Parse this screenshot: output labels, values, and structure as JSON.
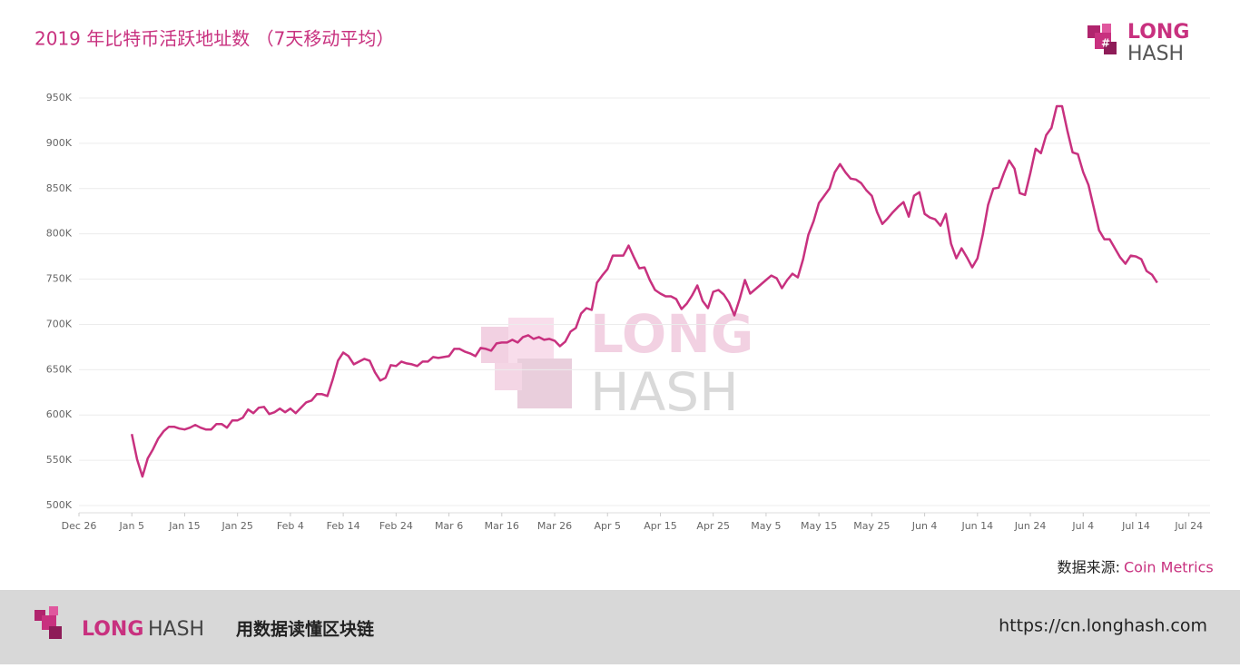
{
  "header": {
    "title": "2019 年比特币活跃地址数 （7天移动平均）",
    "logo": [
      "LONG",
      "HASH"
    ]
  },
  "chart_data": {
    "type": "line",
    "x": [
      "Jan 5",
      "Jan 6",
      "Jan 7",
      "Jan 8",
      "Jan 9",
      "Jan 10",
      "Jan 11",
      "Jan 12",
      "Jan 13",
      "Jan 14",
      "Jan 15",
      "Jan 16",
      "Jan 17",
      "Jan 18",
      "Jan 19",
      "Jan 20",
      "Jan 21",
      "Jan 22",
      "Jan 23",
      "Jan 24",
      "Jan 25",
      "Jan 26",
      "Jan 27",
      "Jan 28",
      "Jan 29",
      "Jan 30",
      "Jan 31",
      "Feb 1",
      "Feb 2",
      "Feb 3",
      "Feb 4",
      "Feb 5",
      "Feb 6",
      "Feb 7",
      "Feb 8",
      "Feb 9",
      "Feb 10",
      "Feb 11",
      "Feb 12",
      "Feb 13",
      "Feb 14",
      "Feb 15",
      "Feb 16",
      "Feb 17",
      "Feb 18",
      "Feb 19",
      "Feb 20",
      "Feb 21",
      "Feb 22",
      "Feb 23",
      "Feb 24",
      "Feb 25",
      "Feb 26",
      "Feb 27",
      "Feb 28",
      "Mar 1",
      "Mar 2",
      "Mar 3",
      "Mar 4",
      "Mar 5",
      "Mar 6",
      "Mar 7",
      "Mar 8",
      "Mar 9",
      "Mar 10",
      "Mar 11",
      "Mar 12",
      "Mar 13",
      "Mar 14",
      "Mar 15",
      "Mar 16",
      "Mar 17",
      "Mar 18",
      "Mar 19",
      "Mar 20",
      "Mar 21",
      "Mar 22",
      "Mar 23",
      "Mar 24",
      "Mar 25",
      "Mar 26",
      "Mar 27",
      "Mar 28",
      "Mar 29",
      "Mar 30",
      "Mar 31",
      "Apr 1",
      "Apr 2",
      "Apr 3",
      "Apr 4",
      "Apr 5",
      "Apr 6",
      "Apr 7",
      "Apr 8",
      "Apr 9",
      "Apr 10",
      "Apr 11",
      "Apr 12",
      "Apr 13",
      "Apr 14",
      "Apr 15",
      "Apr 16",
      "Apr 17",
      "Apr 18",
      "Apr 19",
      "Apr 20",
      "Apr 21",
      "Apr 22",
      "Apr 23",
      "Apr 24",
      "Apr 25",
      "Apr 26",
      "Apr 27",
      "Apr 28",
      "Apr 29",
      "Apr 30",
      "May 1",
      "May 2",
      "May 3",
      "May 4",
      "May 5",
      "May 6",
      "May 7",
      "May 8",
      "May 9",
      "May 10",
      "May 11",
      "May 12",
      "May 13",
      "May 14",
      "May 15",
      "May 16",
      "May 17",
      "May 18",
      "May 19",
      "May 20",
      "May 21",
      "May 22",
      "May 23",
      "May 24",
      "May 25",
      "May 26",
      "May 27",
      "May 28",
      "May 29",
      "May 30",
      "May 31",
      "Jun 1",
      "Jun 2",
      "Jun 3",
      "Jun 4",
      "Jun 5",
      "Jun 6",
      "Jun 7",
      "Jun 8",
      "Jun 9",
      "Jun 10",
      "Jun 11",
      "Jun 12",
      "Jun 13",
      "Jun 14",
      "Jun 15",
      "Jun 16",
      "Jun 17",
      "Jun 18",
      "Jun 19",
      "Jun 20",
      "Jun 21",
      "Jun 22",
      "Jun 23",
      "Jun 24",
      "Jun 25",
      "Jun 26",
      "Jun 27",
      "Jun 28",
      "Jun 29",
      "Jun 30",
      "Jul 1",
      "Jul 2",
      "Jul 3",
      "Jul 4",
      "Jul 5",
      "Jul 6",
      "Jul 7",
      "Jul 8",
      "Jul 9",
      "Jul 10",
      "Jul 11",
      "Jul 12",
      "Jul 13",
      "Jul 14",
      "Jul 15",
      "Jul 16",
      "Jul 17",
      "Jul 18"
    ],
    "series": [
      {
        "color": "#c8317f",
        "values": [
          579,
          551,
          532,
          552,
          562,
          574,
          582,
          587,
          587,
          585,
          584,
          586,
          589,
          586,
          584,
          584,
          590,
          590,
          586,
          594,
          594,
          597,
          606,
          602,
          608,
          609,
          601,
          603,
          607,
          603,
          607,
          602,
          608,
          614,
          616,
          623,
          623,
          621,
          639,
          660,
          669,
          665,
          656,
          659,
          662,
          660,
          647,
          638,
          641,
          655,
          654,
          659,
          657,
          656,
          654,
          659,
          659,
          664,
          663,
          664,
          665,
          673,
          673,
          670,
          668,
          665,
          674,
          673,
          671,
          679,
          680,
          680,
          683,
          680,
          686,
          688,
          684,
          686,
          683,
          684,
          682,
          676,
          681,
          692,
          696,
          712,
          718,
          716,
          746,
          754,
          761,
          776,
          776,
          776,
          787,
          774,
          762,
          763,
          749,
          738,
          734,
          731,
          731,
          728,
          717,
          723,
          732,
          743,
          726,
          718,
          736,
          738,
          733,
          724,
          710,
          728,
          749,
          734,
          739,
          744,
          749,
          754,
          751,
          740,
          749,
          756,
          752,
          772,
          799,
          814,
          834,
          842,
          850,
          868,
          877,
          868,
          861,
          860,
          856,
          848,
          842,
          824,
          811,
          817,
          824,
          830,
          835,
          819,
          842,
          846,
          822,
          818,
          816,
          809,
          822,
          789,
          773,
          784,
          774,
          763,
          773,
          799,
          832,
          850,
          851,
          867,
          881,
          872,
          845,
          843,
          867,
          894,
          889,
          909,
          917,
          941,
          941,
          914,
          890,
          888,
          868,
          854,
          829,
          804,
          794,
          794,
          784,
          774,
          767,
          776,
          775,
          772,
          759,
          755,
          746
        ]
      }
    ],
    "xlim": [
      "Dec 26",
      "Jul 28"
    ],
    "xticks": [
      "Dec 26",
      "Jan 5",
      "Jan 15",
      "Jan 25",
      "Feb 4",
      "Feb 14",
      "Feb 24",
      "Mar 6",
      "Mar 16",
      "Mar 26",
      "Apr 5",
      "Apr 15",
      "Apr 25",
      "May 5",
      "May 15",
      "May 25",
      "Jun 4",
      "Jun 14",
      "Jun 24",
      "Jul 4",
      "Jul 14",
      "Jul 24"
    ],
    "ylim": [
      492,
      960
    ],
    "yticks": [
      {
        "value": 500,
        "label": "500K"
      },
      {
        "value": 550,
        "label": "550K"
      },
      {
        "value": 600,
        "label": "600K"
      },
      {
        "value": 650,
        "label": "650K"
      },
      {
        "value": 700,
        "label": "700K"
      },
      {
        "value": 750,
        "label": "750K"
      },
      {
        "value": 800,
        "label": "800K"
      },
      {
        "value": 850,
        "label": "850K"
      },
      {
        "value": 900,
        "label": "900K"
      },
      {
        "value": 950,
        "label": "950K"
      }
    ],
    "grid": true
  },
  "source": {
    "label": "数据来源:",
    "name": "Coin Metrics"
  },
  "footer": {
    "slogan": "用数据读懂区块链",
    "url": "https://cn.longhash.com"
  }
}
